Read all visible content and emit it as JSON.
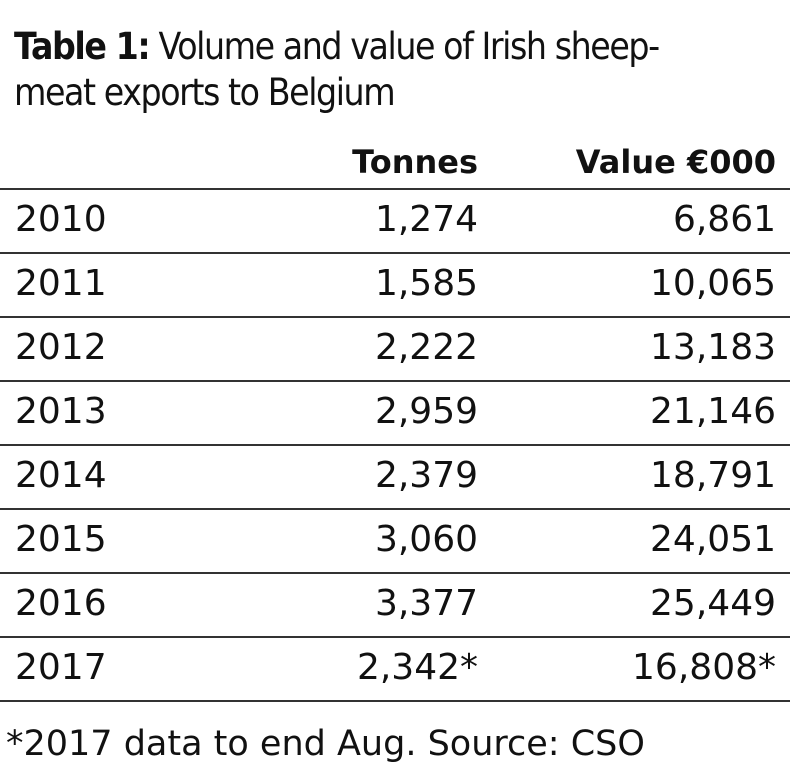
{
  "title": {
    "label": "Table 1:",
    "line1": " Volume and value of Irish sheep-",
    "line2": "meat exports to Belgium"
  },
  "table": {
    "columns": [
      "Tonnes",
      "Value €000"
    ],
    "rows": [
      {
        "year": "2010",
        "tonnes": "1,274",
        "value": "6,861"
      },
      {
        "year": "2011",
        "tonnes": "1,585",
        "value": "10,065"
      },
      {
        "year": "2012",
        "tonnes": "2,222",
        "value": "13,183"
      },
      {
        "year": "2013",
        "tonnes": "2,959",
        "value": "21,146"
      },
      {
        "year": "2014",
        "tonnes": "2,379",
        "value": "18,791"
      },
      {
        "year": "2015",
        "tonnes": "3,060",
        "value": "24,051"
      },
      {
        "year": "2016",
        "tonnes": "3,377",
        "value": "25,449"
      },
      {
        "year": "2017",
        "tonnes": "2,342*",
        "value": "16,808*"
      }
    ]
  },
  "footnote": "*2017 data to end Aug. Source: CSO"
}
